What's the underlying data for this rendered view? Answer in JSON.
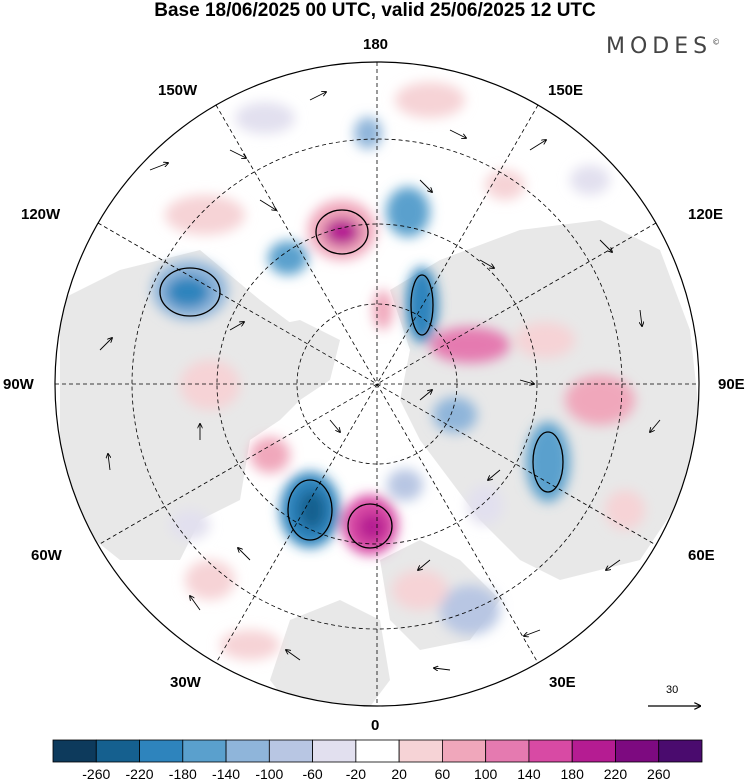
{
  "header": {
    "title": "Base 18/06/2025 00 UTC, valid 25/06/2025 12 UTC",
    "logo": "MODES",
    "logo_mark": "©"
  },
  "map": {
    "projection": "north polar stereographic",
    "longitude_labels": {
      "top": "180",
      "bottom": "0",
      "left": "90W",
      "right": "90E",
      "upper_left_1": "150W",
      "upper_left_2": "120W",
      "upper_right_1": "150E",
      "upper_right_2": "120E",
      "lower_left_1": "60W",
      "lower_left_2": "30W",
      "lower_right_1": "60E",
      "lower_right_2": "30E"
    },
    "reference_vector": "30"
  },
  "colorbar": {
    "labels": [
      "-260",
      "-220",
      "-180",
      "-140",
      "-100",
      "-60",
      "-20",
      "20",
      "60",
      "100",
      "140",
      "180",
      "220",
      "260"
    ],
    "colors": [
      "#0d3a5c",
      "#15608f",
      "#2e84bd",
      "#5aa0cd",
      "#8fb5da",
      "#b8c6e3",
      "#e2e0ef",
      "#ffffff",
      "#f6d3d6",
      "#f0a7bb",
      "#e57ab0",
      "#d84aa4",
      "#b51c92",
      "#7d0a80",
      "#4a0b6e"
    ]
  },
  "colors": {
    "land_fill": "#e9e9e9",
    "coast": "#222222",
    "grid": "#000000"
  }
}
